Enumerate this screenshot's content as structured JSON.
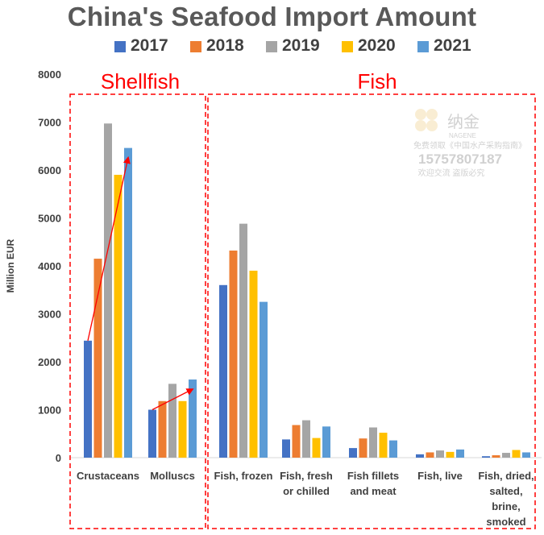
{
  "chart_data": {
    "type": "bar",
    "title": "China's Seafood Import Amount",
    "ylabel": "Million EUR",
    "ylim": [
      0,
      8000
    ],
    "yticks": [
      "0",
      "1000",
      "2000",
      "3000",
      "4000",
      "5000",
      "6000",
      "7000",
      "8000"
    ],
    "grid": false,
    "legend_position": "top",
    "categories": [
      [
        "Crustaceans"
      ],
      [
        "Molluscs"
      ],
      [
        "Fish, frozen"
      ],
      [
        "Fish, fresh",
        "or chilled"
      ],
      [
        "Fish fillets",
        "and meat"
      ],
      [
        "Fish, live"
      ],
      [
        "Fish, dried,",
        "salted,",
        "brine,",
        "smoked"
      ]
    ],
    "series": [
      {
        "name": "2017",
        "color": "#4472C4",
        "values": [
          2440,
          1000,
          3600,
          380,
          200,
          70,
          30
        ]
      },
      {
        "name": "2018",
        "color": "#ED7D31",
        "values": [
          4150,
          1180,
          4320,
          680,
          400,
          110,
          50
        ]
      },
      {
        "name": "2019",
        "color": "#A5A5A5",
        "values": [
          6970,
          1540,
          4880,
          780,
          630,
          150,
          100
        ]
      },
      {
        "name": "2020",
        "color": "#FFC000",
        "values": [
          5900,
          1180,
          3900,
          410,
          520,
          120,
          160
        ]
      },
      {
        "name": "2021",
        "color": "#5B9BD5",
        "values": [
          6460,
          1630,
          3250,
          650,
          360,
          170,
          110
        ]
      }
    ],
    "groups": [
      {
        "label": "Shellfish",
        "categories": [
          0,
          1
        ]
      },
      {
        "label": "Fish",
        "categories": [
          2,
          3,
          4,
          5,
          6
        ]
      }
    ],
    "annotations": [
      {
        "type": "arrow",
        "category": 0,
        "from_series": 0,
        "to_series": 4,
        "color": "#FF0000"
      },
      {
        "type": "arrow",
        "category": 1,
        "from_series": 0,
        "to_series": 4,
        "color": "#FF0000"
      }
    ]
  },
  "watermark": {
    "brand_cn": "纳金",
    "brand_en": "NAGENE",
    "line1": "免费领取《中国水产采购指南》",
    "phone": "15757807187",
    "line2": "欢迎交流 盗版必究"
  }
}
